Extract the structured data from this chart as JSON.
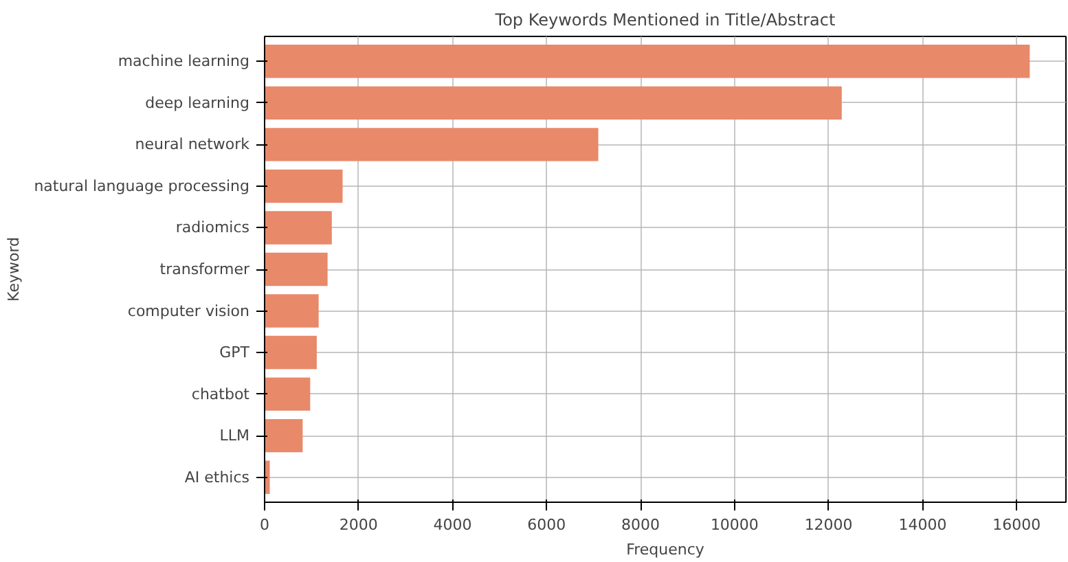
{
  "chart_data": {
    "type": "bar",
    "orientation": "horizontal",
    "title": "Top Keywords Mentioned in Title/Abstract",
    "xlabel": "Frequency",
    "ylabel": "Keyword",
    "categories": [
      "machine learning",
      "deep learning",
      "neural network",
      "natural language processing",
      "radiomics",
      "transformer",
      "computer vision",
      "GPT",
      "chatbot",
      "LLM",
      "AI ethics"
    ],
    "values": [
      16280,
      12280,
      7100,
      1660,
      1430,
      1340,
      1150,
      1110,
      970,
      810,
      110
    ],
    "color": "#e8896a",
    "xlim": [
      0,
      17050
    ],
    "xticks": [
      0,
      2000,
      4000,
      6000,
      8000,
      10000,
      12000,
      14000,
      16000
    ],
    "grid": true
  }
}
